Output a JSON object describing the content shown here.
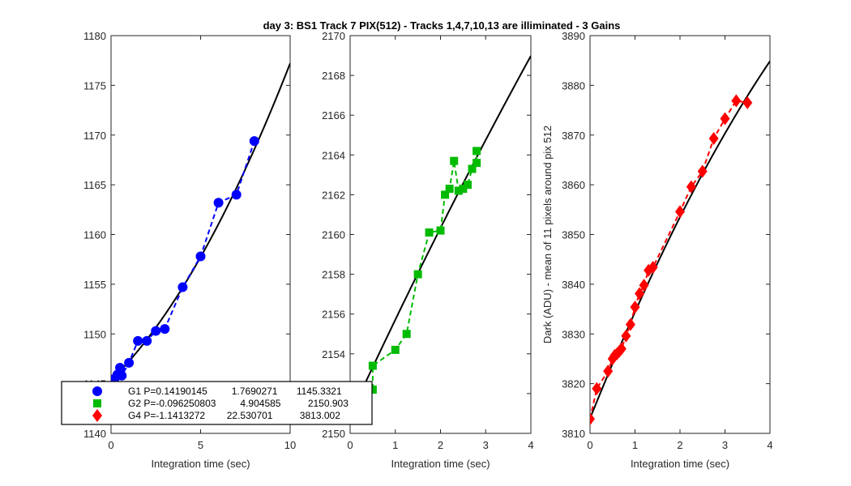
{
  "title": "day 3: BS1  Track 7 PIX(512) - Tracks 1,4,7,10,13 are illiminated - 3 Gains",
  "chart_data": [
    {
      "type": "scatter",
      "panel": "left",
      "xlabel": "Integration time (sec)",
      "ylabel": "",
      "xlim": [
        0,
        10
      ],
      "ylim": [
        1140,
        1180
      ],
      "xticks": [
        0,
        5,
        10
      ],
      "yticks": [
        1140,
        1145,
        1150,
        1155,
        1160,
        1165,
        1170,
        1175,
        1180
      ],
      "color": "#0000ff",
      "marker": "circle",
      "points": {
        "x": [
          0,
          0.2,
          0.35,
          0.5,
          0.6,
          1.0,
          1.5,
          2.0,
          2.5,
          3.0,
          4.0,
          5.0,
          6.0,
          7.0,
          8.0
        ],
        "y": [
          1144.8,
          1145.5,
          1145.9,
          1146.6,
          1145.8,
          1147.1,
          1149.3,
          1149.3,
          1150.3,
          1150.5,
          1154.7,
          1157.8,
          1163.2,
          1164.0,
          1169.4
        ]
      },
      "fit": {
        "type": "quadratic",
        "coeffs": [
          0.1419,
          1.7690271,
          1145.332
        ],
        "x_range": [
          0,
          10
        ]
      }
    },
    {
      "type": "scatter",
      "panel": "middle",
      "xlabel": "Integration time (sec)",
      "ylabel": "",
      "xlim": [
        0,
        4
      ],
      "ylim": [
        2150,
        2170
      ],
      "xticks": [
        0,
        1,
        2,
        3,
        4
      ],
      "yticks": [
        2150,
        2152,
        2154,
        2156,
        2158,
        2160,
        2162,
        2164,
        2166,
        2168,
        2170
      ],
      "color": "#00bb00",
      "marker": "square",
      "points": {
        "x": [
          0,
          0.2,
          0.5,
          0.5,
          1.0,
          1.25,
          1.5,
          1.75,
          2.0,
          2.1,
          2.2,
          2.3,
          2.4,
          2.5,
          2.6,
          2.7,
          2.8,
          2.8
        ],
        "y": [
          2152.4,
          2150.8,
          2152.2,
          2153.4,
          2154.2,
          2155.0,
          2158.0,
          2160.1,
          2160.2,
          2162.0,
          2162.3,
          2163.7,
          2162.2,
          2162.3,
          2162.5,
          2163.3,
          2163.6,
          2164.2
        ]
      },
      "fit": {
        "type": "quadratic",
        "coeffs": [
          -0.09625,
          4.904585,
          2150.903
        ],
        "x_range": [
          0,
          4
        ]
      }
    },
    {
      "type": "scatter",
      "panel": "right",
      "xlabel": "Integration time (sec)",
      "ylabel": "Dark (ADU) - mean of 11 pixels around pix 512",
      "xlim": [
        0,
        4
      ],
      "ylim": [
        3810,
        3890
      ],
      "xticks": [
        0,
        1,
        2,
        3,
        4
      ],
      "yticks": [
        3810,
        3820,
        3830,
        3840,
        3850,
        3860,
        3870,
        3880,
        3890
      ],
      "color": "#ff0000",
      "marker": "diamond",
      "points": {
        "x": [
          0,
          0.15,
          0.4,
          0.5,
          0.55,
          0.6,
          0.65,
          0.7,
          0.8,
          0.9,
          1.0,
          1.1,
          1.2,
          1.3,
          1.4,
          2.0,
          2.25,
          2.5,
          2.75,
          3.0,
          3.25,
          3.5
        ],
        "y": [
          3812.9,
          3819.0,
          3822.5,
          3825.0,
          3825.7,
          3826.0,
          3826.5,
          3827.0,
          3829.6,
          3831.9,
          3835.4,
          3838.1,
          3839.8,
          3842.8,
          3843.4,
          3854.6,
          3859.6,
          3862.7,
          3869.3,
          3873.3,
          3876.9,
          3876.5
        ]
      },
      "fit": {
        "type": "quadratic",
        "coeffs": [
          -1.1413272,
          22.530701,
          3813.002
        ],
        "x_range": [
          0,
          4
        ]
      }
    }
  ],
  "legend": {
    "entries": [
      {
        "label": "G1 P=0.14190145         1.7690271       1145.3321",
        "color": "#0000ff",
        "marker": "circle"
      },
      {
        "label": "G2 P=-0.096250803         4.904585          2150.903",
        "color": "#00bb00",
        "marker": "square"
      },
      {
        "label": "G4 P=-1.1413272        22.530701          3813.002",
        "color": "#ff0000",
        "marker": "diamond"
      }
    ]
  }
}
